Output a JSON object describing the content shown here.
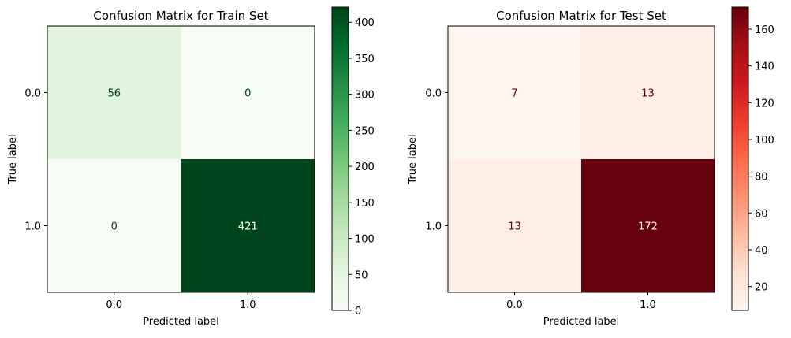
{
  "chart_data": [
    {
      "type": "heatmap",
      "title": "Confusion Matrix for Train Set",
      "xlabel": "Predicted label",
      "ylabel": "True label",
      "x_categories": [
        "0.0",
        "1.0"
      ],
      "y_categories": [
        "0.0",
        "1.0"
      ],
      "matrix": [
        [
          56,
          0
        ],
        [
          0,
          421
        ]
      ],
      "colormap": "Greens",
      "colors": [
        "#f7fcf5",
        "#e5f5e0",
        "#c7e9c0",
        "#a1d99b",
        "#74c476",
        "#41ab5d",
        "#238b45",
        "#006d2c",
        "#00441b"
      ],
      "colorbar": {
        "range": [
          0,
          421
        ],
        "ticks": [
          0,
          50,
          100,
          150,
          200,
          250,
          300,
          350,
          400
        ]
      }
    },
    {
      "type": "heatmap",
      "title": "Confusion Matrix for Test Set",
      "xlabel": "Predicted label",
      "ylabel": "True label",
      "x_categories": [
        "0.0",
        "1.0"
      ],
      "y_categories": [
        "0.0",
        "1.0"
      ],
      "matrix": [
        [
          7,
          13
        ],
        [
          13,
          172
        ]
      ],
      "colormap": "Reds",
      "colors": [
        "#fff5f0",
        "#fee0d2",
        "#fcbba1",
        "#fc9272",
        "#fb6a4a",
        "#ef3b2c",
        "#cb181d",
        "#a50f15",
        "#67000d"
      ],
      "colorbar": {
        "range": [
          7,
          172
        ],
        "ticks": [
          20,
          40,
          60,
          80,
          100,
          120,
          140,
          160
        ]
      }
    }
  ]
}
